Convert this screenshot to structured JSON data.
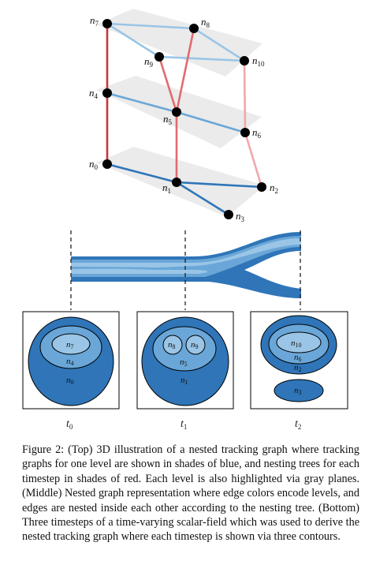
{
  "nodes": [
    {
      "id": "n7",
      "base": "n",
      "sub": "7"
    },
    {
      "id": "n8",
      "base": "n",
      "sub": "8"
    },
    {
      "id": "n9",
      "base": "n",
      "sub": "9"
    },
    {
      "id": "n10",
      "base": "n",
      "sub": "10"
    },
    {
      "id": "n4",
      "base": "n",
      "sub": "4"
    },
    {
      "id": "n5",
      "base": "n",
      "sub": "5"
    },
    {
      "id": "n6",
      "base": "n",
      "sub": "6"
    },
    {
      "id": "n0",
      "base": "n",
      "sub": "0"
    },
    {
      "id": "n1",
      "base": "n",
      "sub": "1"
    },
    {
      "id": "n2",
      "base": "n",
      "sub": "2"
    },
    {
      "id": "n3",
      "base": "n",
      "sub": "3"
    }
  ],
  "contour_labels": {
    "p0": {
      "outer": {
        "base": "n",
        "sub": "0"
      },
      "mid": {
        "base": "n",
        "sub": "4"
      },
      "inner": {
        "base": "n",
        "sub": "7"
      }
    },
    "p1": {
      "outer": {
        "base": "n",
        "sub": "1"
      },
      "mid": {
        "base": "n",
        "sub": "5"
      },
      "left": {
        "base": "n",
        "sub": "8"
      },
      "right": {
        "base": "n",
        "sub": "9"
      }
    },
    "p2": {
      "outer": {
        "base": "n",
        "sub": "2"
      },
      "mid": {
        "base": "n",
        "sub": "6"
      },
      "inner": {
        "base": "n",
        "sub": "10"
      },
      "separate": {
        "base": "n",
        "sub": "3"
      }
    }
  },
  "timesteps": [
    {
      "base": "t",
      "sub": "0"
    },
    {
      "base": "t",
      "sub": "1"
    },
    {
      "base": "t",
      "sub": "2"
    }
  ],
  "colors": {
    "blue_dark": "#2f75b8",
    "blue_mid": "#6aa7d8",
    "blue_light": "#9ac5e6",
    "red_dark": "#c8373a",
    "red_mid": "#e06c6e",
    "red_light": "#f0a8aa",
    "plane_gray": "#ebebeb"
  },
  "caption": "Figure 2: (Top) 3D illustration of a nested tracking graph where tracking graphs for one level are shown in shades of blue, and nesting trees for each timestep in shades of red. Each level is also highlighted via gray planes. (Middle) Nested graph representation where edge colors encode levels, and edges are nested inside each other according to the nesting tree. (Bottom) Three timesteps of a time-varying scalar-field which was used to derive the nested tracking graph where each timestep is shown via three contours."
}
